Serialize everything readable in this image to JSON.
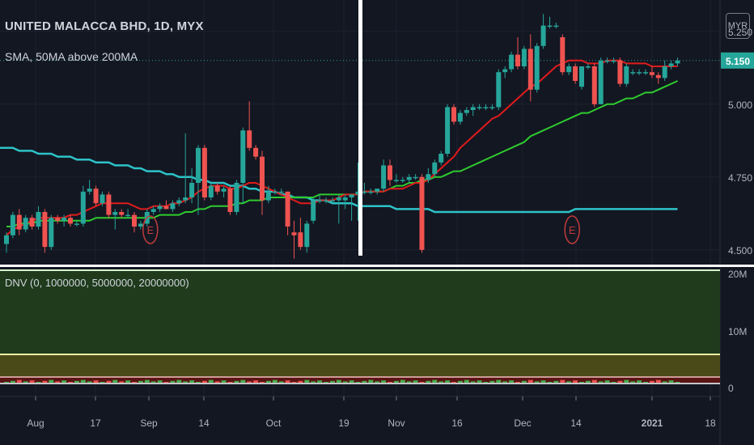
{
  "header": {
    "title": "UNITED MALACCA BHD, 1D, MYX",
    "indicator": "SMA, 50MA above 200MA",
    "currency": "MYR"
  },
  "colors": {
    "background": "#131722",
    "up": "#26a69a",
    "down": "#ef5350",
    "sma_fast": "#e01b1b",
    "sma_mid": "#2ecc2e",
    "sma_slow": "#2dc3c8",
    "last_price_bg": "#26a69a",
    "vertical_marker": "#ffffff",
    "earnings": "#c13b3b",
    "dnv_green": "#1f3b1c",
    "dnv_olive": "#4a4a18",
    "dnv_red": "#5a1414"
  },
  "price_axis": {
    "ticks": [
      "5.250",
      "5.000",
      "4.750",
      "4.500"
    ],
    "last_price": "5.150"
  },
  "volume_axis": {
    "ticks": [
      "20M",
      "10M",
      "0"
    ]
  },
  "time_axis": {
    "ticks": [
      "Aug",
      "17",
      "Sep",
      "14",
      "Oct",
      "19",
      "Nov",
      "16",
      "Dec",
      "14",
      "2021",
      "18"
    ]
  },
  "dnv_panel": {
    "label": "DNV (0, 1000000, 5000000, 20000000)"
  },
  "events": {
    "earnings": [
      "E",
      "E"
    ]
  },
  "chart_data": {
    "type": "candlestick",
    "title": "UNITED MALACCA BHD, 1D, MYX",
    "ylim": [
      4.48,
      5.33
    ],
    "ohlc": [
      {
        "o": 4.52,
        "h": 4.56,
        "l": 4.49,
        "c": 4.55
      },
      {
        "o": 4.55,
        "h": 4.63,
        "l": 4.54,
        "c": 4.62
      },
      {
        "o": 4.62,
        "h": 4.64,
        "l": 4.55,
        "c": 4.57
      },
      {
        "o": 4.57,
        "h": 4.62,
        "l": 4.56,
        "c": 4.61
      },
      {
        "o": 4.61,
        "h": 4.62,
        "l": 4.57,
        "c": 4.58
      },
      {
        "o": 4.58,
        "h": 4.65,
        "l": 4.57,
        "c": 4.63
      },
      {
        "o": 4.63,
        "h": 4.64,
        "l": 4.49,
        "c": 4.51
      },
      {
        "o": 4.51,
        "h": 4.62,
        "l": 4.5,
        "c": 4.61
      },
      {
        "o": 4.61,
        "h": 4.62,
        "l": 4.59,
        "c": 4.6
      },
      {
        "o": 4.6,
        "h": 4.62,
        "l": 4.58,
        "c": 4.61
      },
      {
        "o": 4.61,
        "h": 4.62,
        "l": 4.58,
        "c": 4.59
      },
      {
        "o": 4.59,
        "h": 4.6,
        "l": 4.58,
        "c": 4.59
      },
      {
        "o": 4.59,
        "h": 4.72,
        "l": 4.58,
        "c": 4.7
      },
      {
        "o": 4.7,
        "h": 4.74,
        "l": 4.69,
        "c": 4.71
      },
      {
        "o": 4.71,
        "h": 4.72,
        "l": 4.65,
        "c": 4.66
      },
      {
        "o": 4.66,
        "h": 4.7,
        "l": 4.65,
        "c": 4.69
      },
      {
        "o": 4.69,
        "h": 4.7,
        "l": 4.61,
        "c": 4.62
      },
      {
        "o": 4.62,
        "h": 4.64,
        "l": 4.57,
        "c": 4.63
      },
      {
        "o": 4.63,
        "h": 4.64,
        "l": 4.61,
        "c": 4.62
      },
      {
        "o": 4.62,
        "h": 4.64,
        "l": 4.61,
        "c": 4.62
      },
      {
        "o": 4.62,
        "h": 4.63,
        "l": 4.56,
        "c": 4.58
      },
      {
        "o": 4.58,
        "h": 4.6,
        "l": 4.57,
        "c": 4.59
      },
      {
        "o": 4.59,
        "h": 4.64,
        "l": 4.58,
        "c": 4.63
      },
      {
        "o": 4.63,
        "h": 4.65,
        "l": 4.62,
        "c": 4.64
      },
      {
        "o": 4.64,
        "h": 4.66,
        "l": 4.63,
        "c": 4.65
      },
      {
        "o": 4.65,
        "h": 4.67,
        "l": 4.64,
        "c": 4.64
      },
      {
        "o": 4.64,
        "h": 4.67,
        "l": 4.63,
        "c": 4.66
      },
      {
        "o": 4.66,
        "h": 4.68,
        "l": 4.65,
        "c": 4.67
      },
      {
        "o": 4.67,
        "h": 4.9,
        "l": 4.66,
        "c": 4.68
      },
      {
        "o": 4.68,
        "h": 4.78,
        "l": 4.66,
        "c": 4.73
      },
      {
        "o": 4.73,
        "h": 4.86,
        "l": 4.62,
        "c": 4.85
      },
      {
        "o": 4.85,
        "h": 4.86,
        "l": 4.67,
        "c": 4.68
      },
      {
        "o": 4.68,
        "h": 4.73,
        "l": 4.67,
        "c": 4.72
      },
      {
        "o": 4.72,
        "h": 4.73,
        "l": 4.69,
        "c": 4.7
      },
      {
        "o": 4.7,
        "h": 4.72,
        "l": 4.68,
        "c": 4.71
      },
      {
        "o": 4.71,
        "h": 4.72,
        "l": 4.62,
        "c": 4.63
      },
      {
        "o": 4.63,
        "h": 4.74,
        "l": 4.62,
        "c": 4.73
      },
      {
        "o": 4.73,
        "h": 4.92,
        "l": 4.66,
        "c": 4.91
      },
      {
        "o": 4.91,
        "h": 5.01,
        "l": 4.84,
        "c": 4.85
      },
      {
        "o": 4.85,
        "h": 4.86,
        "l": 4.81,
        "c": 4.82
      },
      {
        "o": 4.82,
        "h": 4.84,
        "l": 4.62,
        "c": 4.67
      },
      {
        "o": 4.67,
        "h": 4.72,
        "l": 4.66,
        "c": 4.7
      },
      {
        "o": 4.7,
        "h": 4.71,
        "l": 4.69,
        "c": 4.7
      },
      {
        "o": 4.7,
        "h": 4.71,
        "l": 4.69,
        "c": 4.7
      },
      {
        "o": 4.7,
        "h": 4.7,
        "l": 4.55,
        "c": 4.58
      },
      {
        "o": 4.56,
        "h": 4.6,
        "l": 4.47,
        "c": 4.55
      },
      {
        "o": 4.56,
        "h": 4.61,
        "l": 4.5,
        "c": 4.51
      },
      {
        "o": 4.51,
        "h": 4.6,
        "l": 4.49,
        "c": 4.59
      },
      {
        "o": 4.6,
        "h": 4.68,
        "l": 4.59,
        "c": 4.67
      },
      {
        "o": 4.67,
        "h": 4.69,
        "l": 4.66,
        "c": 4.67
      },
      {
        "o": 4.67,
        "h": 4.68,
        "l": 4.66,
        "c": 4.67
      },
      {
        "o": 4.67,
        "h": 4.68,
        "l": 4.66,
        "c": 4.67
      },
      {
        "o": 4.67,
        "h": 4.69,
        "l": 4.59,
        "c": 4.68
      },
      {
        "o": 4.67,
        "h": 4.69,
        "l": 4.64,
        "c": 4.68
      },
      {
        "o": 4.68,
        "h": 4.69,
        "l": 4.6,
        "c": 4.69
      },
      {
        "o": 4.69,
        "h": 4.8,
        "l": 4.6,
        "c": 4.7
      },
      {
        "o": 4.7,
        "h": 4.73,
        "l": 4.69,
        "c": 4.7
      },
      {
        "o": 4.7,
        "h": 4.71,
        "l": 4.69,
        "c": 4.7
      },
      {
        "o": 4.7,
        "h": 4.71,
        "l": 4.69,
        "c": 4.71
      },
      {
        "o": 4.71,
        "h": 4.81,
        "l": 4.7,
        "c": 4.79
      },
      {
        "o": 4.79,
        "h": 4.81,
        "l": 4.72,
        "c": 4.74
      },
      {
        "o": 4.74,
        "h": 4.76,
        "l": 4.73,
        "c": 4.74
      },
      {
        "o": 4.74,
        "h": 4.75,
        "l": 4.73,
        "c": 4.74
      },
      {
        "o": 4.74,
        "h": 4.76,
        "l": 4.73,
        "c": 4.75
      },
      {
        "o": 4.75,
        "h": 4.76,
        "l": 4.74,
        "c": 4.75
      },
      {
        "o": 4.75,
        "h": 4.76,
        "l": 4.49,
        "c": 4.5
      },
      {
        "o": 4.74,
        "h": 4.78,
        "l": 4.73,
        "c": 4.76
      },
      {
        "o": 4.76,
        "h": 4.81,
        "l": 4.75,
        "c": 4.8
      },
      {
        "o": 4.8,
        "h": 4.84,
        "l": 4.79,
        "c": 4.83
      },
      {
        "o": 4.83,
        "h": 5.0,
        "l": 4.82,
        "c": 4.99
      },
      {
        "o": 4.99,
        "h": 5.0,
        "l": 4.93,
        "c": 4.94
      },
      {
        "o": 4.94,
        "h": 4.98,
        "l": 4.93,
        "c": 4.97
      },
      {
        "o": 4.97,
        "h": 4.99,
        "l": 4.96,
        "c": 4.98
      },
      {
        "o": 4.98,
        "h": 5.0,
        "l": 4.96,
        "c": 4.99
      },
      {
        "o": 4.99,
        "h": 5.0,
        "l": 4.98,
        "c": 4.99
      },
      {
        "o": 4.99,
        "h": 5.0,
        "l": 4.98,
        "c": 4.99
      },
      {
        "o": 4.99,
        "h": 5.0,
        "l": 4.98,
        "c": 4.99
      },
      {
        "o": 4.99,
        "h": 5.12,
        "l": 4.98,
        "c": 5.11
      },
      {
        "o": 5.11,
        "h": 5.13,
        "l": 5.09,
        "c": 5.12
      },
      {
        "o": 5.12,
        "h": 5.18,
        "l": 5.11,
        "c": 5.17
      },
      {
        "o": 5.17,
        "h": 5.23,
        "l": 5.12,
        "c": 5.13
      },
      {
        "o": 5.13,
        "h": 5.2,
        "l": 5.12,
        "c": 5.19
      },
      {
        "o": 5.19,
        "h": 5.24,
        "l": 5.01,
        "c": 5.05
      },
      {
        "o": 5.05,
        "h": 5.21,
        "l": 5.04,
        "c": 5.2
      },
      {
        "o": 5.2,
        "h": 5.31,
        "l": 5.19,
        "c": 5.27
      },
      {
        "o": 5.27,
        "h": 5.3,
        "l": 5.26,
        "c": 5.27
      },
      {
        "o": 5.27,
        "h": 5.28,
        "l": 5.26,
        "c": 5.27
      },
      {
        "o": 5.23,
        "h": 5.24,
        "l": 5.1,
        "c": 5.11
      },
      {
        "o": 5.11,
        "h": 5.14,
        "l": 5.1,
        "c": 5.13
      },
      {
        "o": 5.13,
        "h": 5.14,
        "l": 5.07,
        "c": 5.08
      },
      {
        "o": 5.06,
        "h": 5.13,
        "l": 5.05,
        "c": 5.13
      },
      {
        "o": 5.13,
        "h": 5.14,
        "l": 5.12,
        "c": 5.13
      },
      {
        "o": 5.13,
        "h": 5.14,
        "l": 4.99,
        "c": 5.0
      },
      {
        "o": 5.0,
        "h": 5.16,
        "l": 5.0,
        "c": 5.15
      },
      {
        "o": 5.15,
        "h": 5.16,
        "l": 5.14,
        "c": 5.15
      },
      {
        "o": 5.15,
        "h": 5.16,
        "l": 5.14,
        "c": 5.15
      },
      {
        "o": 5.15,
        "h": 5.16,
        "l": 5.06,
        "c": 5.07
      },
      {
        "o": 5.07,
        "h": 5.14,
        "l": 5.06,
        "c": 5.13
      },
      {
        "o": 5.11,
        "h": 5.12,
        "l": 5.1,
        "c": 5.11
      },
      {
        "o": 5.11,
        "h": 5.12,
        "l": 5.1,
        "c": 5.11
      },
      {
        "o": 5.11,
        "h": 5.12,
        "l": 5.1,
        "c": 5.11
      },
      {
        "o": 5.11,
        "h": 5.13,
        "l": 5.09,
        "c": 5.1
      },
      {
        "o": 5.1,
        "h": 5.11,
        "l": 5.07,
        "c": 5.09
      },
      {
        "o": 5.09,
        "h": 5.15,
        "l": 5.08,
        "c": 5.13
      },
      {
        "o": 5.13,
        "h": 5.15,
        "l": 5.12,
        "c": 5.14
      },
      {
        "o": 5.14,
        "h": 5.16,
        "l": 5.13,
        "c": 5.15
      }
    ],
    "sma_fast": [
      4.55,
      4.57,
      4.58,
      4.59,
      4.6,
      4.61,
      4.61,
      4.61,
      4.61,
      4.61,
      4.62,
      4.62,
      4.63,
      4.64,
      4.65,
      4.66,
      4.66,
      4.66,
      4.66,
      4.66,
      4.65,
      4.64,
      4.64,
      4.65,
      4.65,
      4.65,
      4.66,
      4.66,
      4.67,
      4.68,
      4.7,
      4.71,
      4.72,
      4.72,
      4.72,
      4.71,
      4.71,
      4.72,
      4.73,
      4.73,
      4.72,
      4.71,
      4.7,
      4.69,
      4.68,
      4.67,
      4.66,
      4.66,
      4.66,
      4.67,
      4.67,
      4.67,
      4.68,
      4.69,
      4.69,
      4.69,
      4.7,
      4.7,
      4.7,
      4.7,
      4.71,
      4.71,
      4.71,
      4.72,
      4.73,
      4.73,
      4.74,
      4.76,
      4.78,
      4.8,
      4.82,
      4.85,
      4.87,
      4.89,
      4.91,
      4.93,
      4.95,
      4.96,
      4.98,
      5.0,
      5.02,
      5.04,
      5.06,
      5.07,
      5.09,
      5.11,
      5.13,
      5.14,
      5.15,
      5.15,
      5.15,
      5.14,
      5.14,
      5.14,
      5.15,
      5.15,
      5.15,
      5.14,
      5.14,
      5.14,
      5.14,
      5.13,
      5.13,
      5.13,
      5.13,
      5.13
    ],
    "sma_mid": [
      4.58,
      4.58,
      4.59,
      4.59,
      4.59,
      4.6,
      4.6,
      4.6,
      4.6,
      4.6,
      4.6,
      4.6,
      4.6,
      4.6,
      4.61,
      4.61,
      4.61,
      4.61,
      4.61,
      4.61,
      4.61,
      4.61,
      4.61,
      4.61,
      4.62,
      4.62,
      4.62,
      4.62,
      4.63,
      4.63,
      4.64,
      4.64,
      4.65,
      4.65,
      4.65,
      4.65,
      4.66,
      4.66,
      4.67,
      4.67,
      4.67,
      4.68,
      4.68,
      4.68,
      4.68,
      4.68,
      4.68,
      4.68,
      4.68,
      4.69,
      4.69,
      4.69,
      4.69,
      4.69,
      4.69,
      4.69,
      4.7,
      4.7,
      4.7,
      4.7,
      4.71,
      4.72,
      4.72,
      4.73,
      4.73,
      4.74,
      4.74,
      4.75,
      4.75,
      4.76,
      4.77,
      4.77,
      4.78,
      4.79,
      4.8,
      4.81,
      4.82,
      4.83,
      4.84,
      4.85,
      4.86,
      4.87,
      4.89,
      4.9,
      4.91,
      4.92,
      4.93,
      4.94,
      4.95,
      4.96,
      4.97,
      4.97,
      4.98,
      4.99,
      5.0,
      5.0,
      5.01,
      5.02,
      5.02,
      5.03,
      5.04,
      5.04,
      5.05,
      5.06,
      5.07,
      5.08
    ],
    "sma_slow": [
      4.85,
      4.85,
      4.84,
      4.84,
      4.84,
      4.83,
      4.83,
      4.83,
      4.82,
      4.82,
      4.82,
      4.81,
      4.81,
      4.81,
      4.8,
      4.8,
      4.8,
      4.79,
      4.79,
      4.79,
      4.78,
      4.78,
      4.77,
      4.77,
      4.77,
      4.76,
      4.76,
      4.75,
      4.75,
      4.75,
      4.74,
      4.74,
      4.73,
      4.73,
      4.73,
      4.72,
      4.72,
      4.72,
      4.71,
      4.71,
      4.7,
      4.7,
      4.7,
      4.69,
      4.69,
      4.68,
      4.68,
      4.68,
      4.67,
      4.67,
      4.67,
      4.66,
      4.66,
      4.66,
      4.66,
      4.65,
      4.65,
      4.65,
      4.65,
      4.65,
      4.65,
      4.64,
      4.64,
      4.64,
      4.64,
      4.64,
      4.64,
      4.63,
      4.63,
      4.63,
      4.63,
      4.63,
      4.63,
      4.63,
      4.63,
      4.63,
      4.63,
      4.63,
      4.63,
      4.63,
      4.63,
      4.63,
      4.63,
      4.63,
      4.63,
      4.63,
      4.63,
      4.63,
      4.63,
      4.64,
      4.64,
      4.64,
      4.64,
      4.64,
      4.64,
      4.64,
      4.64,
      4.64,
      4.64,
      4.64,
      4.64,
      4.64,
      4.64,
      4.64,
      4.64,
      4.64
    ],
    "earnings_at": [
      22,
      88
    ],
    "vertical_marker_at": 55
  }
}
